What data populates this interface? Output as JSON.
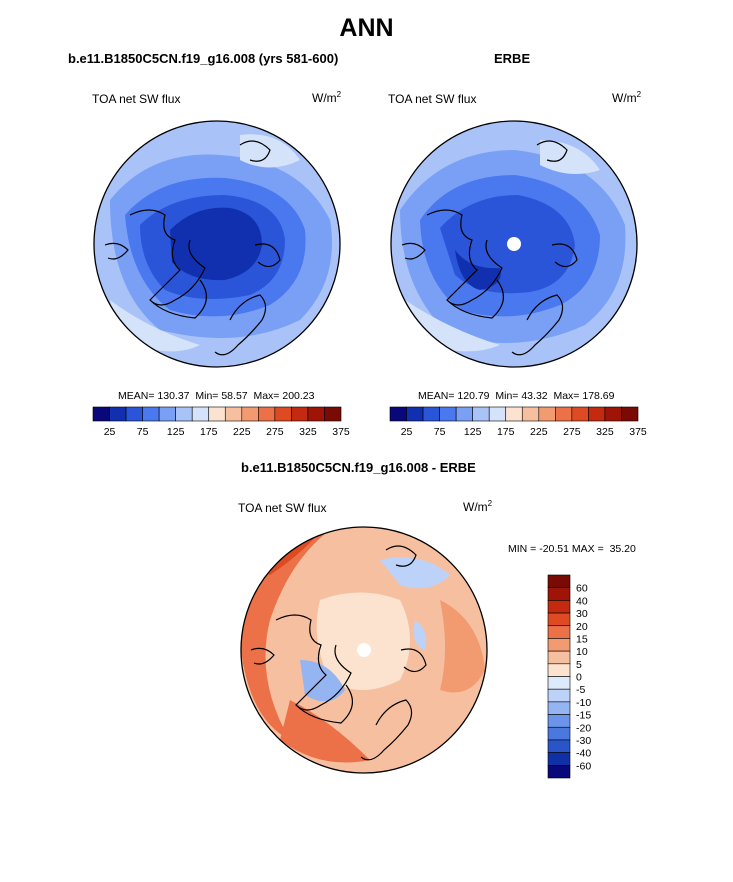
{
  "page": {
    "title": "ANN"
  },
  "panels": [
    {
      "subtitle": "b.e11.B1850C5CN.f19_g16.008 (yrs 581-600)",
      "variable": "TOA net SW flux",
      "units_base": "W/m",
      "units_exp": "2",
      "stats": {
        "mean_label": "MEAN=",
        "mean": "130.37",
        "min_label": "Min=",
        "min": "58.57",
        "max_label": "Max=",
        "max": "200.23"
      }
    },
    {
      "subtitle": "ERBE",
      "variable": "TOA net SW flux",
      "units_base": "W/m",
      "units_exp": "2",
      "stats": {
        "mean_label": "MEAN=",
        "mean": "120.79",
        "min_label": "Min=",
        "min": "43.32",
        "max_label": "Max=",
        "max": "178.69"
      }
    }
  ],
  "difference": {
    "subtitle": "b.e11.B1850C5CN.f19_g16.008 - ERBE",
    "variable": "TOA net SW flux",
    "units_base": "W/m",
    "units_exp": "2",
    "stats": {
      "min_label": "MIN =",
      "min": "-20.51",
      "max_label": "MAX =",
      "max": "35.20"
    }
  },
  "chart_data": [
    {
      "type": "heatmap",
      "projection": "north polar stereographic",
      "title": "b.e11.B1850C5CN.f19_g16.008 (yrs 581-600)",
      "variable": "TOA net SW flux",
      "units": "W/m2",
      "stats": {
        "mean": 130.37,
        "min": 58.57,
        "max": 200.23
      },
      "colorbar": {
        "orientation": "horizontal",
        "colors": [
          "#08087a",
          "#1030b0",
          "#2a55d8",
          "#4a78ee",
          "#7aa0f6",
          "#a9c3f8",
          "#d4e2fa",
          "#fbe3d0",
          "#f6c0a0",
          "#f29a70",
          "#ec7048",
          "#de4a22",
          "#c42a10",
          "#a01408",
          "#7a0a04"
        ],
        "tick_labels": [
          "25",
          "75",
          "125",
          "175",
          "225",
          "275",
          "325",
          "375"
        ]
      }
    },
    {
      "type": "heatmap",
      "projection": "north polar stereographic",
      "title": "ERBE",
      "variable": "TOA net SW flux",
      "units": "W/m2",
      "stats": {
        "mean": 120.79,
        "min": 43.32,
        "max": 178.69
      },
      "colorbar": {
        "orientation": "horizontal",
        "colors": [
          "#08087a",
          "#1030b0",
          "#2a55d8",
          "#4a78ee",
          "#7aa0f6",
          "#a9c3f8",
          "#d4e2fa",
          "#fbe3d0",
          "#f6c0a0",
          "#f29a70",
          "#ec7048",
          "#de4a22",
          "#c42a10",
          "#a01408",
          "#7a0a04"
        ],
        "tick_labels": [
          "25",
          "75",
          "125",
          "175",
          "225",
          "275",
          "325",
          "375"
        ]
      }
    },
    {
      "type": "heatmap",
      "projection": "north polar stereographic",
      "title": "b.e11.B1850C5CN.f19_g16.008 - ERBE",
      "variable": "TOA net SW flux",
      "units": "W/m2",
      "stats": {
        "min": -20.51,
        "max": 35.2
      },
      "colorbar": {
        "orientation": "vertical",
        "colors": [
          "#7a0a04",
          "#a01408",
          "#c42a10",
          "#de4a22",
          "#ec7048",
          "#f29a70",
          "#f6c0a0",
          "#fbe3d0",
          "#ddeafa",
          "#bcd2f8",
          "#94b4f2",
          "#6c94ea",
          "#4a78de",
          "#2a55c8",
          "#1030a8",
          "#08087a"
        ],
        "tick_labels": [
          "60",
          "40",
          "30",
          "20",
          "15",
          "10",
          "5",
          "0",
          "-5",
          "-10",
          "-15",
          "-20",
          "-30",
          "-40",
          "-60"
        ]
      }
    }
  ]
}
